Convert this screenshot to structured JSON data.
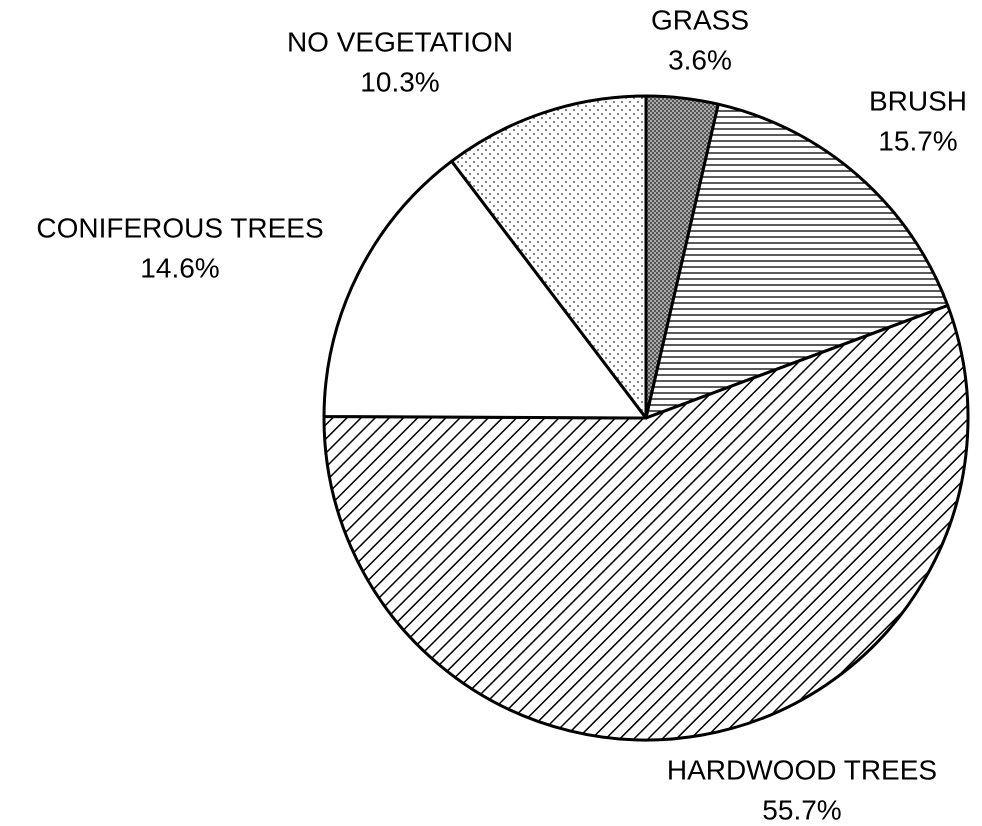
{
  "chart_data": {
    "type": "pie",
    "categories": [
      "GRASS",
      "BRUSH",
      "HARDWOOD TREES",
      "CONIFEROUS TREES",
      "NO VEGETATION"
    ],
    "values": [
      3.6,
      15.7,
      55.7,
      14.6,
      10.3
    ],
    "value_labels": [
      "3.6%",
      "15.7%",
      "55.7%",
      "14.6%",
      "10.3%"
    ]
  }
}
